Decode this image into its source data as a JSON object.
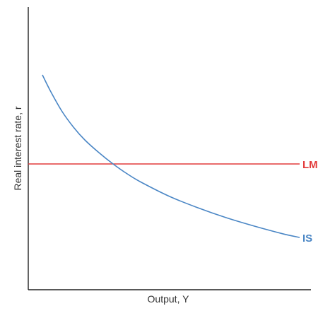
{
  "chart_data": {
    "type": "line",
    "title": "",
    "xlabel": "Output, Y",
    "ylabel": "Real interest rate, r",
    "xlim": [
      0,
      100
    ],
    "ylim": [
      0,
      100
    ],
    "x_ticks_shown": false,
    "y_ticks_shown": false,
    "grid": false,
    "legend": "none",
    "series": [
      {
        "name": "LM",
        "color": "#e23a3a",
        "x": [
          0,
          96
        ],
        "y": [
          44.5,
          44.5
        ]
      },
      {
        "name": "IS",
        "color": "#4a86c5",
        "x": [
          5,
          8,
          12,
          16,
          20,
          25,
          30,
          35,
          40,
          50,
          60,
          70,
          80,
          90,
          96
        ],
        "y": [
          76,
          70,
          63,
          57.5,
          53,
          48.5,
          44.5,
          41,
          38,
          33,
          29,
          25.5,
          22.5,
          19.8,
          18.5
        ]
      }
    ]
  }
}
